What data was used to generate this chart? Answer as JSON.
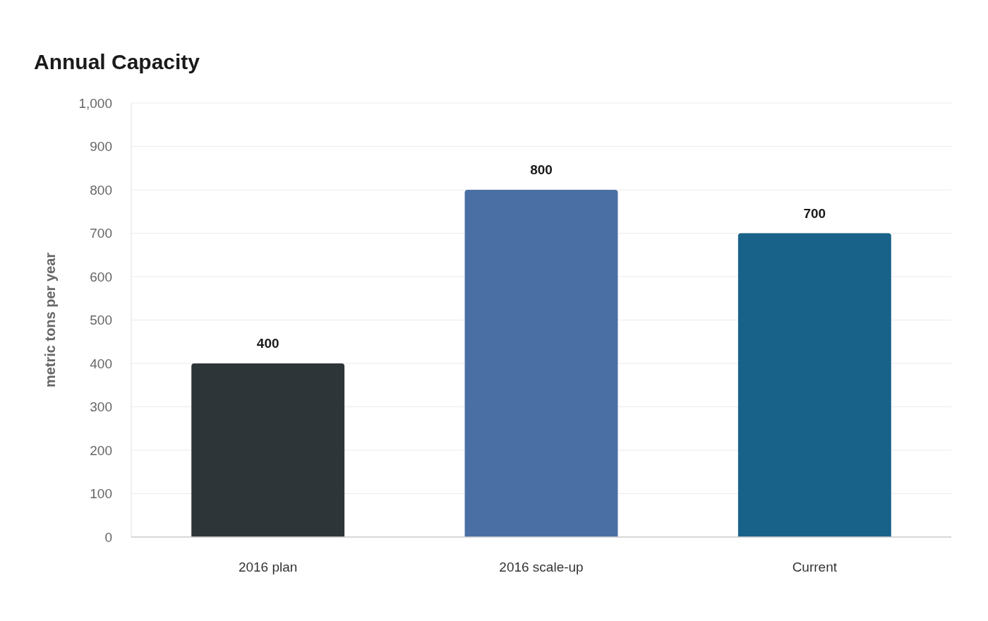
{
  "chart_data": {
    "type": "bar",
    "title": "Annual Capacity",
    "ylabel": "metric tons per year",
    "categories": [
      "2016 plan",
      "2016 scale-up",
      "Current"
    ],
    "values": [
      400,
      800,
      700
    ],
    "colors": [
      "#2e3538",
      "#4a6fa5",
      "#186289"
    ],
    "ylim": [
      0,
      1000
    ],
    "yticks": [
      0,
      100,
      200,
      300,
      400,
      500,
      600,
      700,
      800,
      900,
      {
        "value": 1000,
        "label": "1,000"
      }
    ],
    "grid": "y",
    "data_labels": true
  }
}
